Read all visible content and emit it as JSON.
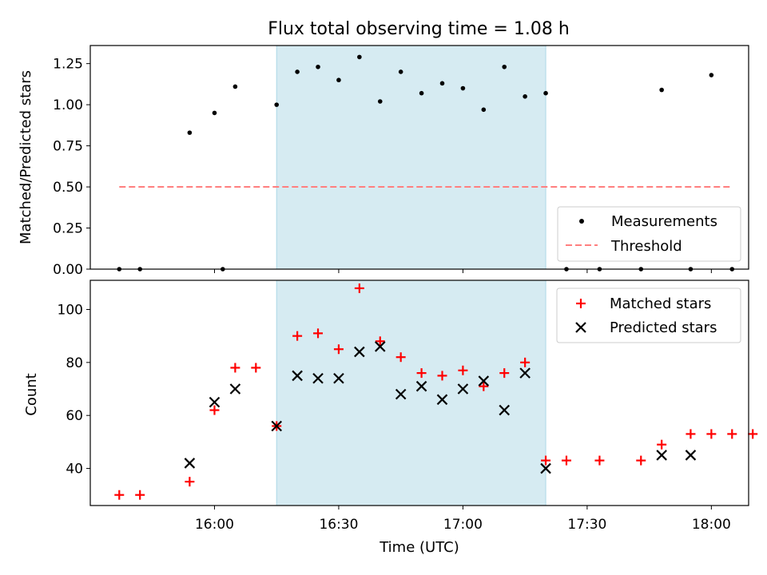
{
  "chart_data": {
    "title": "Flux total observing time = 1.08 h",
    "xlabel": "Time (UTC)",
    "x_unit": "minutes since 00:00 UTC",
    "xlim": [
      930,
      1089
    ],
    "x_ticks": [
      {
        "v": 960,
        "label": "16:00"
      },
      {
        "v": 990,
        "label": "16:30"
      },
      {
        "v": 1020,
        "label": "17:00"
      },
      {
        "v": 1050,
        "label": "17:30"
      },
      {
        "v": 1080,
        "label": "18:00"
      }
    ],
    "shaded_span": {
      "x0": 975,
      "x1": 1040,
      "color": "#add8e6"
    },
    "top": {
      "type": "scatter",
      "ylabel": "Matched/Predicted stars",
      "ylim": [
        0,
        1.36
      ],
      "y_ticks": [
        {
          "v": 0,
          "label": "0.00"
        },
        {
          "v": 0.25,
          "label": "0.25"
        },
        {
          "v": 0.5,
          "label": "0.50"
        },
        {
          "v": 0.75,
          "label": "0.75"
        },
        {
          "v": 1.0,
          "label": "1.00"
        },
        {
          "v": 1.25,
          "label": "1.25"
        }
      ],
      "measurements": {
        "name": "Measurements",
        "x": [
          937,
          942,
          954,
          960,
          965,
          975,
          980,
          985,
          990,
          995,
          1000,
          1005,
          1010,
          1015,
          1020,
          1025,
          1030,
          1035,
          1040,
          1045,
          1053,
          1063,
          1068,
          1075,
          1080,
          1085
        ],
        "y": [
          0,
          0,
          0.83,
          0.95,
          1.11,
          1.0,
          1.2,
          1.23,
          1.15,
          1.29,
          1.02,
          1.2,
          1.07,
          1.13,
          1.1,
          0.97,
          1.23,
          1.05,
          1.07,
          0,
          0,
          0,
          1.09,
          0,
          1.18,
          0
        ]
      },
      "pts_y_zero_extra": [
        {
          "x": 962,
          "y": 0
        }
      ],
      "threshold": {
        "name": "Threshold",
        "x": [
          937,
          1085
        ],
        "y": 0.5,
        "color": "#ff7f7f"
      },
      "legend": [
        "Measurements",
        "Threshold"
      ],
      "legend_loc": "lower-right"
    },
    "bottom": {
      "type": "scatter",
      "ylabel": "Count",
      "ylim": [
        26,
        111
      ],
      "y_ticks": [
        {
          "v": 40,
          "label": "40"
        },
        {
          "v": 60,
          "label": "60"
        },
        {
          "v": 80,
          "label": "80"
        },
        {
          "v": 100,
          "label": "100"
        }
      ],
      "series": [
        {
          "name": "Matched stars",
          "marker": "+",
          "color": "#ff0000",
          "x": [
            937,
            942,
            954,
            960,
            965,
            970,
            975,
            980,
            985,
            990,
            995,
            1000,
            1005,
            1010,
            1015,
            1020,
            1025,
            1030,
            1035,
            1040,
            1045,
            1053,
            1063,
            1068,
            1075,
            1080,
            1085,
            1090
          ],
          "y": [
            30,
            30,
            35,
            62,
            78,
            78,
            56,
            90,
            91,
            85,
            108,
            88,
            82,
            76,
            75,
            77,
            71,
            76,
            80,
            43,
            43,
            43,
            43,
            49,
            53,
            53,
            53,
            53
          ]
        },
        {
          "name": "Predicted stars",
          "marker": "x",
          "color": "#000000",
          "x": [
            954,
            960,
            965,
            975,
            980,
            985,
            990,
            995,
            1000,
            1005,
            1010,
            1015,
            1020,
            1025,
            1030,
            1035,
            1040,
            1068,
            1075
          ],
          "y": [
            42,
            65,
            70,
            56,
            75,
            74,
            74,
            84,
            86,
            68,
            71,
            66,
            70,
            73,
            62,
            76,
            40,
            45,
            45
          ]
        }
      ],
      "legend": [
        "Matched stars",
        "Predicted stars"
      ],
      "legend_loc": "upper-right"
    }
  }
}
